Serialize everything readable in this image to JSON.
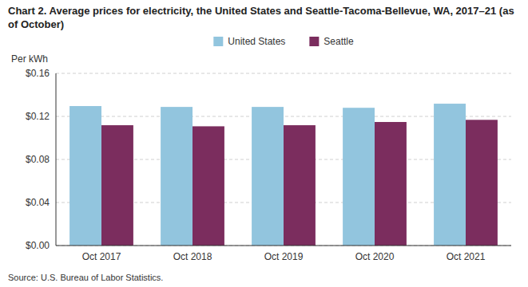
{
  "chart_data": {
    "type": "bar",
    "title": "Chart 2. Average prices for electricity, the United States and Seattle-Tacoma-Bellevue, WA, 2017–21 (as of October)",
    "y_label": "Per kWh",
    "source": "Source: U.S. Bureau of Labor Statistics.",
    "categories": [
      "Oct 2017",
      "Oct 2018",
      "Oct 2019",
      "Oct 2020",
      "Oct 2021"
    ],
    "series": [
      {
        "name": "United States",
        "color": "#92C5DE",
        "values": [
          0.1296,
          0.1288,
          0.1288,
          0.128,
          0.1318
        ]
      },
      {
        "name": "Seattle",
        "color": "#7B2D5E",
        "values": [
          0.1118,
          0.1108,
          0.1118,
          0.1148,
          0.1168
        ]
      }
    ],
    "ylim": [
      0,
      0.16
    ],
    "yticks": [
      {
        "value": 0.0,
        "label": "$0.00"
      },
      {
        "value": 0.04,
        "label": "$0.04"
      },
      {
        "value": 0.08,
        "label": "$0.08"
      },
      {
        "value": 0.12,
        "label": "$0.12"
      },
      {
        "value": 0.16,
        "label": "$0.16"
      }
    ],
    "grid": true,
    "legend": "top"
  }
}
